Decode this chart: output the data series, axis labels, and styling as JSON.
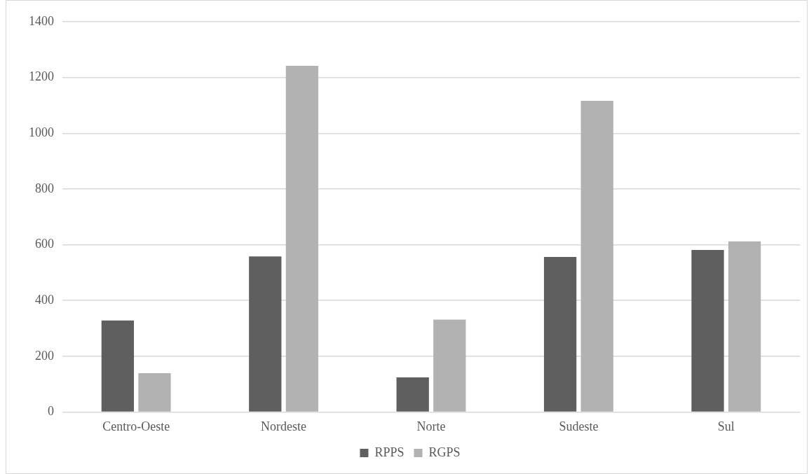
{
  "chart_data": {
    "type": "bar",
    "categories": [
      "Centro-Oeste",
      "Nordeste",
      "Norte",
      "Sudeste",
      "Sul"
    ],
    "series": [
      {
        "name": "RPPS",
        "color": "#5f5f5f",
        "values": [
          328,
          558,
          124,
          556,
          581
        ]
      },
      {
        "name": "RGPS",
        "color": "#b2b2b2",
        "values": [
          139,
          1242,
          331,
          1116,
          612
        ]
      }
    ],
    "ylim": [
      0,
      1400
    ],
    "yticks": [
      0,
      200,
      400,
      600,
      800,
      1000,
      1200,
      1400
    ],
    "grid": "y",
    "legend": "bottom"
  }
}
